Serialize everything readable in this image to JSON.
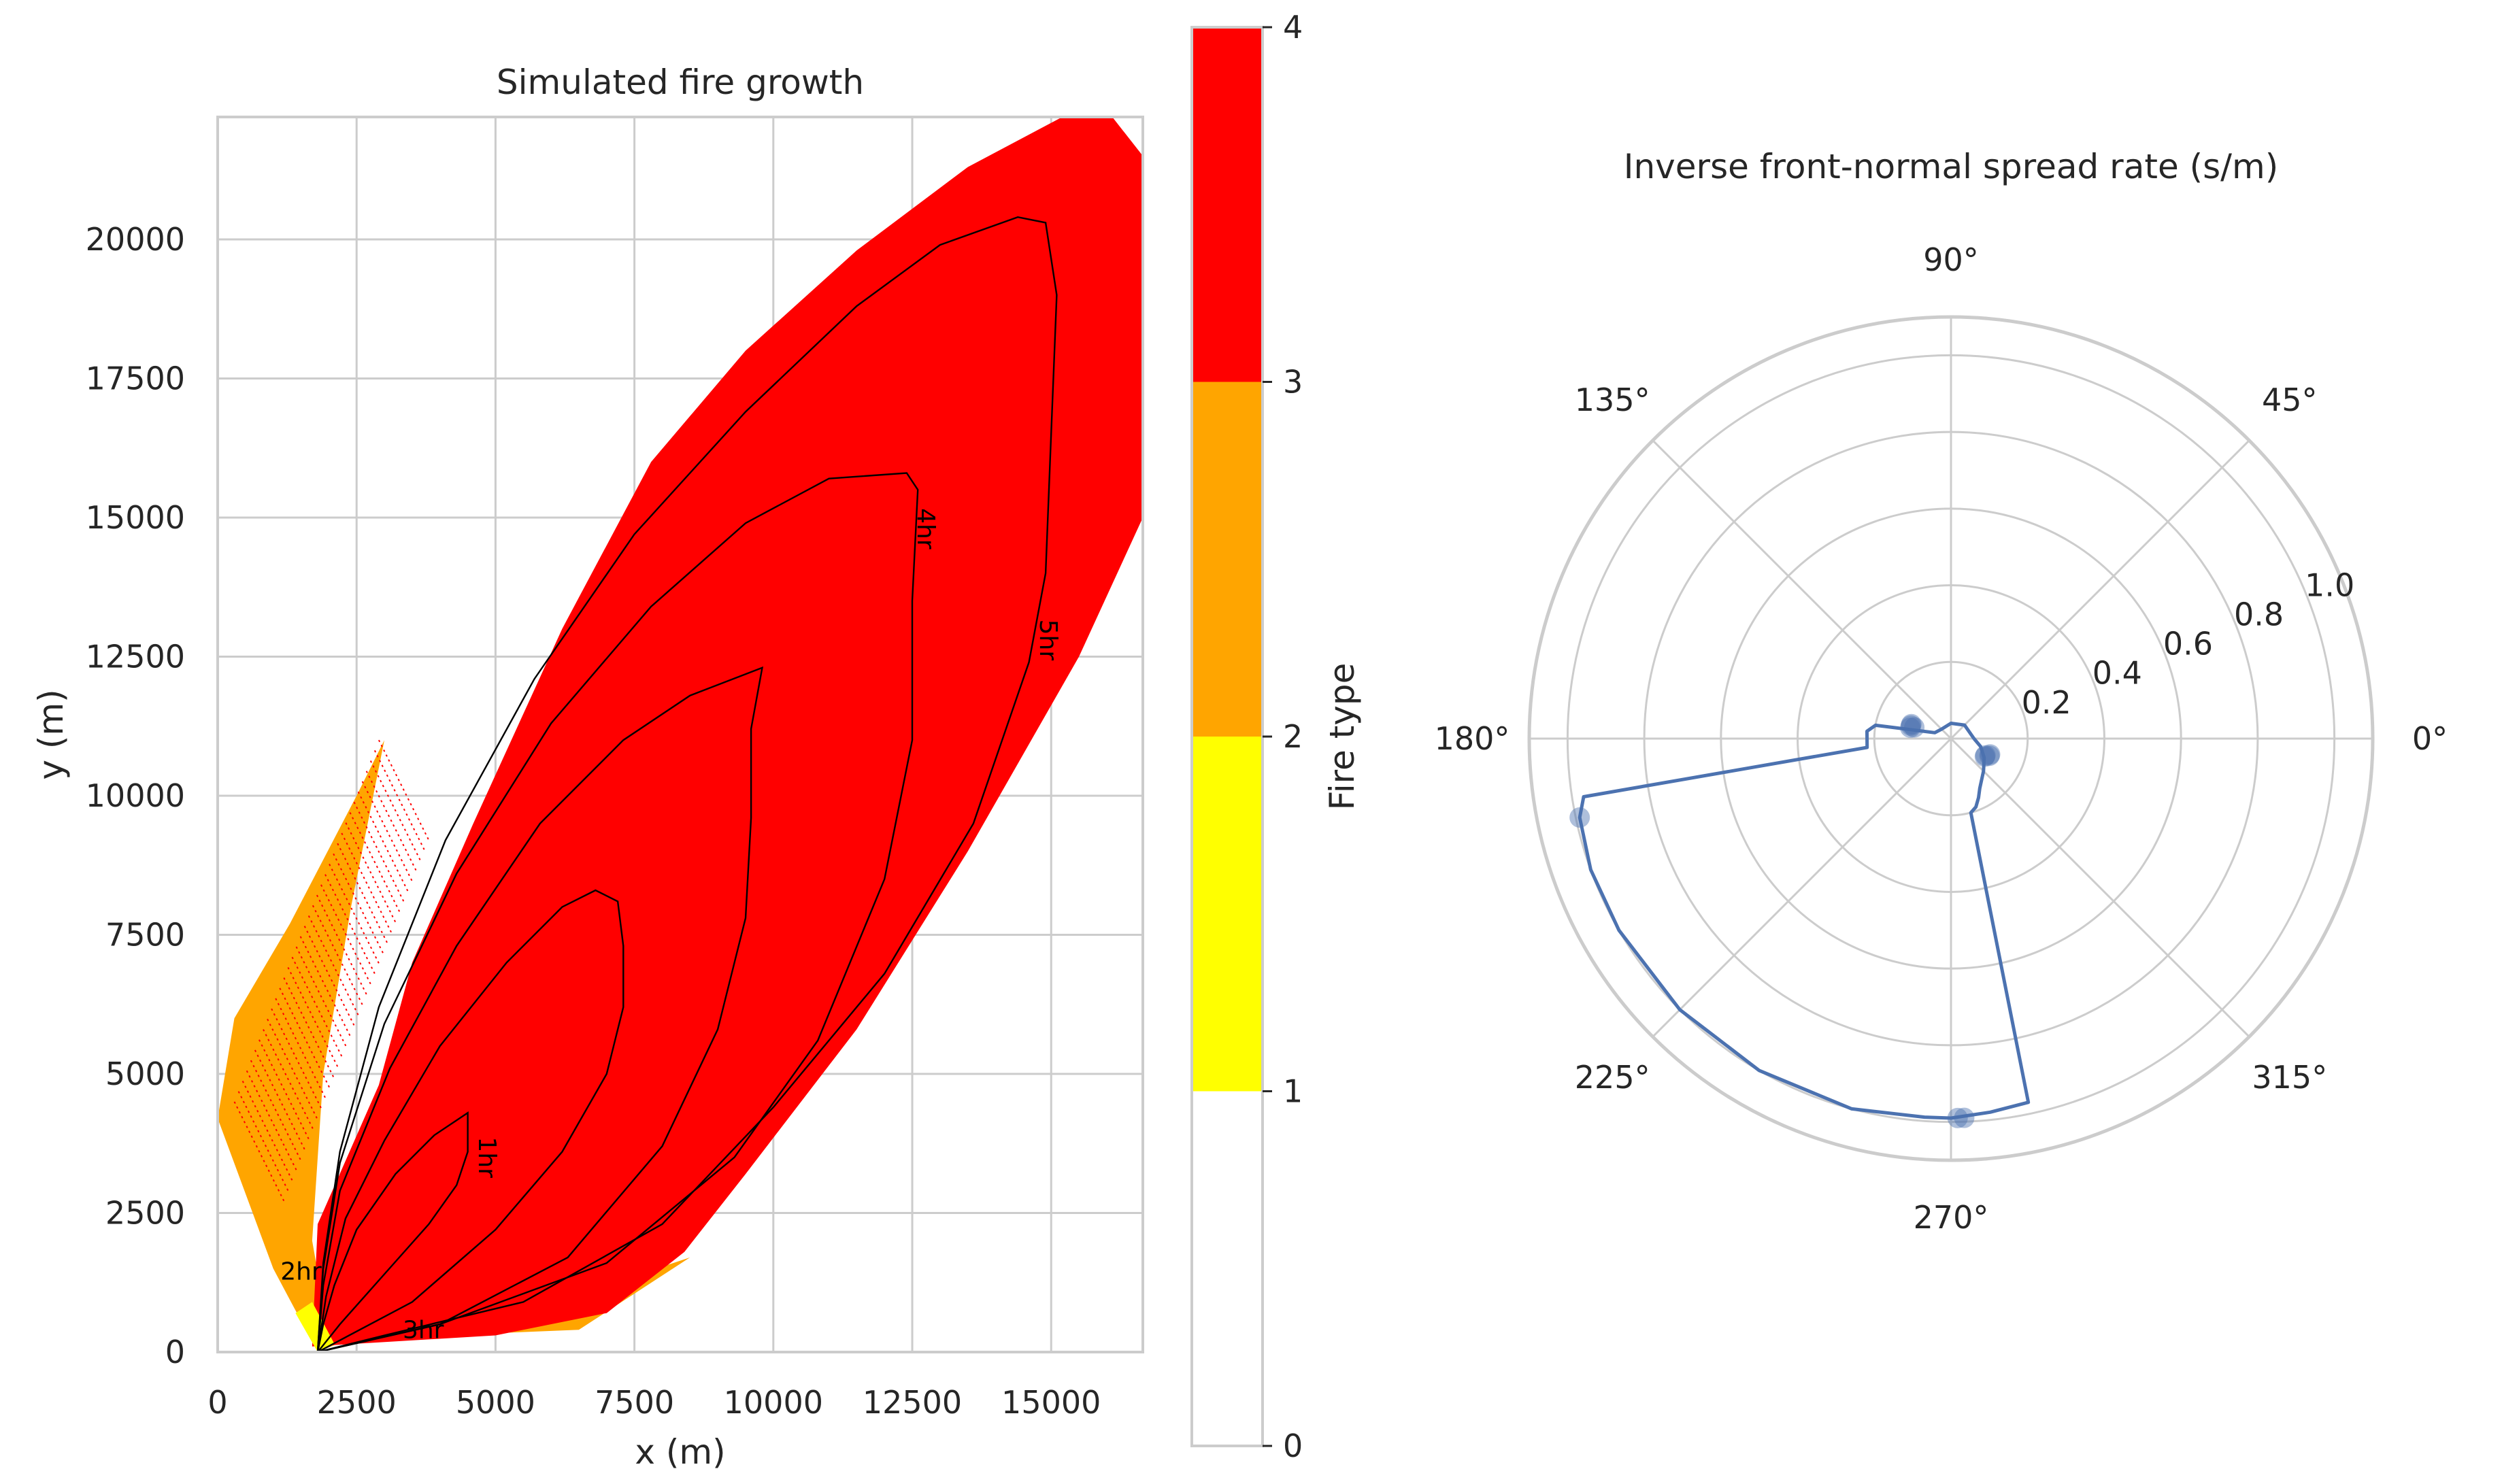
{
  "colors": {
    "crown": "#ff0000",
    "passive_crown": "#ffa500",
    "surface": "#ffff00",
    "unburned": "#ffffff",
    "polar_line": "#4c72b0",
    "grid": "#cccccc",
    "contour": "#000000"
  },
  "chart_data": [
    {
      "type": "heatmap",
      "title": "Simulated fire growth",
      "xlabel": "x (m)",
      "ylabel": "y (m)",
      "xlim": [
        0,
        16650
      ],
      "ylim": [
        0,
        22200
      ],
      "xticks": [
        0,
        2500,
        5000,
        7500,
        10000,
        12500,
        15000
      ],
      "yticks": [
        0,
        2500,
        5000,
        7500,
        10000,
        12500,
        15000,
        17500,
        20000
      ],
      "xtick_labels": [
        "0",
        "2500",
        "5000",
        "7500",
        "10000",
        "12500",
        "15000"
      ],
      "ytick_labels": [
        "0",
        "2500",
        "5000",
        "7500",
        "10000",
        "12500",
        "15000",
        "17500",
        "20000"
      ],
      "grid": true,
      "ignition_point": [
        1800,
        0
      ],
      "colorbar": {
        "label": "Fire type",
        "range": [
          0,
          4
        ],
        "ticks": [
          "0",
          "1",
          "2",
          "3",
          "4"
        ],
        "bands": [
          {
            "from": 0,
            "to": 1,
            "color": "#ffffff"
          },
          {
            "from": 1,
            "to": 2,
            "color": "#ffff00"
          },
          {
            "from": 2,
            "to": 3,
            "color": "#ffa500"
          },
          {
            "from": 3,
            "to": 4,
            "color": "#ff0000"
          }
        ]
      },
      "crown_region": [
        [
          1700,
          100
        ],
        [
          1800,
          2300
        ],
        [
          2900,
          4800
        ],
        [
          3500,
          7000
        ],
        [
          4600,
          9500
        ],
        [
          6200,
          13000
        ],
        [
          7800,
          16000
        ],
        [
          9500,
          18000
        ],
        [
          11500,
          19800
        ],
        [
          13500,
          21300
        ],
        [
          15200,
          22200
        ],
        [
          16100,
          22200
        ],
        [
          16650,
          21500
        ],
        [
          16650,
          15000
        ],
        [
          15500,
          12500
        ],
        [
          13500,
          9000
        ],
        [
          11500,
          5800
        ],
        [
          9500,
          3200
        ],
        [
          8400,
          1800
        ],
        [
          7000,
          700
        ],
        [
          5000,
          300
        ],
        [
          2500,
          150
        ]
      ],
      "passive_region": [
        [
          1800,
          0
        ],
        [
          1000,
          1500
        ],
        [
          0,
          4200
        ],
        [
          300,
          6000
        ],
        [
          1300,
          7700
        ],
        [
          2500,
          10000
        ],
        [
          3000,
          11000
        ],
        [
          2400,
          8000
        ],
        [
          1900,
          5000
        ],
        [
          1700,
          2000
        ],
        [
          2000,
          300
        ],
        [
          4000,
          300
        ],
        [
          6500,
          400
        ],
        [
          8500,
          1700
        ],
        [
          7000,
          1200
        ],
        [
          5000,
          800
        ],
        [
          3000,
          500
        ]
      ],
      "contours": [
        {
          "label": "1hr",
          "label_at": [
            4700,
            3500
          ],
          "points": [
            [
              1800,
              0
            ],
            [
              1900,
              500
            ],
            [
              2100,
              1200
            ],
            [
              2500,
              2200
            ],
            [
              3200,
              3200
            ],
            [
              3900,
              3900
            ],
            [
              4500,
              4300
            ],
            [
              4500,
              4100
            ],
            [
              4500,
              3600
            ],
            [
              4300,
              3000
            ],
            [
              3800,
              2300
            ],
            [
              3000,
              1400
            ],
            [
              2200,
              500
            ],
            [
              1800,
              0
            ]
          ]
        },
        {
          "label": "2hr",
          "label_at": [
            1500,
            1300
          ],
          "points": [
            [
              1800,
              0
            ],
            [
              1950,
              1000
            ],
            [
              2300,
              2400
            ],
            [
              3000,
              3800
            ],
            [
              4000,
              5500
            ],
            [
              5200,
              7000
            ],
            [
              6200,
              8000
            ],
            [
              6800,
              8300
            ],
            [
              7200,
              8100
            ],
            [
              7300,
              7300
            ],
            [
              7300,
              6200
            ],
            [
              7000,
              5000
            ],
            [
              6200,
              3600
            ],
            [
              5000,
              2200
            ],
            [
              3500,
              900
            ],
            [
              1800,
              0
            ]
          ]
        },
        {
          "label": "3hr",
          "label_at": [
            3700,
            250
          ],
          "points": [
            [
              1800,
              0
            ],
            [
              1900,
              1200
            ],
            [
              2200,
              2900
            ],
            [
              3100,
              5100
            ],
            [
              4300,
              7300
            ],
            [
              5800,
              9500
            ],
            [
              7300,
              11000
            ],
            [
              8500,
              11800
            ],
            [
              9800,
              12300
            ],
            [
              9600,
              11200
            ],
            [
              9600,
              9600
            ],
            [
              9500,
              7800
            ],
            [
              9000,
              5800
            ],
            [
              8000,
              3700
            ],
            [
              6300,
              1700
            ],
            [
              4000,
              500
            ],
            [
              1800,
              0
            ]
          ]
        },
        {
          "label": "4hr",
          "label_at": [
            12600,
            14800
          ],
          "points": [
            [
              1800,
              0
            ],
            [
              1900,
              1500
            ],
            [
              2200,
              3400
            ],
            [
              3000,
              5900
            ],
            [
              4300,
              8600
            ],
            [
              6000,
              11300
            ],
            [
              7800,
              13400
            ],
            [
              9500,
              14900
            ],
            [
              11000,
              15700
            ],
            [
              12400,
              15800
            ],
            [
              12600,
              15500
            ],
            [
              12500,
              13500
            ],
            [
              12500,
              11000
            ],
            [
              12000,
              8500
            ],
            [
              10800,
              5600
            ],
            [
              9300,
              3500
            ],
            [
              7000,
              1600
            ],
            [
              4000,
              500
            ],
            [
              1800,
              0
            ]
          ]
        },
        {
          "label": "5hr",
          "label_at": [
            14800,
            12800
          ],
          "points": [
            [
              1800,
              0
            ],
            [
              1900,
              1600
            ],
            [
              2200,
              3600
            ],
            [
              2900,
              6200
            ],
            [
              4100,
              9200
            ],
            [
              5700,
              12100
            ],
            [
              7500,
              14700
            ],
            [
              9500,
              16900
            ],
            [
              11500,
              18800
            ],
            [
              13000,
              19900
            ],
            [
              14400,
              20400
            ],
            [
              14900,
              20300
            ],
            [
              15100,
              19000
            ],
            [
              15000,
              16500
            ],
            [
              14900,
              14000
            ],
            [
              14600,
              12400
            ],
            [
              13600,
              9500
            ],
            [
              12000,
              6800
            ],
            [
              10000,
              4400
            ],
            [
              8000,
              2300
            ],
            [
              5500,
              900
            ],
            [
              3000,
              300
            ],
            [
              1800,
              0
            ]
          ]
        }
      ]
    },
    {
      "type": "line",
      "projection": "polar",
      "title": "Inverse front-normal spread rate (s/m)",
      "theta_unit": "degrees",
      "theta_tick_labels": [
        "0°",
        "45°",
        "90°",
        "135°",
        "180°",
        "225°",
        "270°",
        "315°"
      ],
      "r_ticks": [
        0.2,
        0.4,
        0.6,
        0.8,
        1.0
      ],
      "r_tick_labels": [
        "0.2",
        "0.4",
        "0.6",
        "0.8",
        "1.0"
      ],
      "r_max": 1.1,
      "r_tick_angle_deg": 22.5,
      "line_points": [
        [
          0,
          0.06
        ],
        [
          45,
          0.05
        ],
        [
          90,
          0.04
        ],
        [
          135,
          0.035
        ],
        [
          160,
          0.045
        ],
        [
          170,
          0.2
        ],
        [
          175,
          0.22
        ],
        [
          186,
          0.22
        ],
        [
          189,
          0.97
        ],
        [
          192,
          0.99
        ],
        [
          200,
          1.0
        ],
        [
          210,
          1.0
        ],
        [
          225,
          1.0
        ],
        [
          240,
          1.0
        ],
        [
          255,
          1.0
        ],
        [
          266,
          0.99
        ],
        [
          270,
          0.99
        ],
        [
          276,
          0.98
        ],
        [
          282,
          0.97
        ],
        [
          285,
          0.2
        ],
        [
          290,
          0.19
        ],
        [
          295,
          0.17
        ],
        [
          300,
          0.15
        ],
        [
          315,
          0.12
        ],
        [
          330,
          0.1
        ],
        [
          345,
          0.08
        ],
        [
          360,
          0.06
        ]
      ],
      "scatter_points": [
        [
          163,
          0.1
        ],
        [
          162,
          0.11
        ],
        [
          160,
          0.11
        ],
        [
          165,
          0.11
        ],
        [
          271,
          0.99
        ],
        [
          272,
          0.99
        ],
        [
          332,
          0.1
        ],
        [
          334,
          0.1
        ],
        [
          336,
          0.11
        ],
        [
          338,
          0.11
        ],
        [
          192,
          0.99
        ]
      ]
    }
  ]
}
